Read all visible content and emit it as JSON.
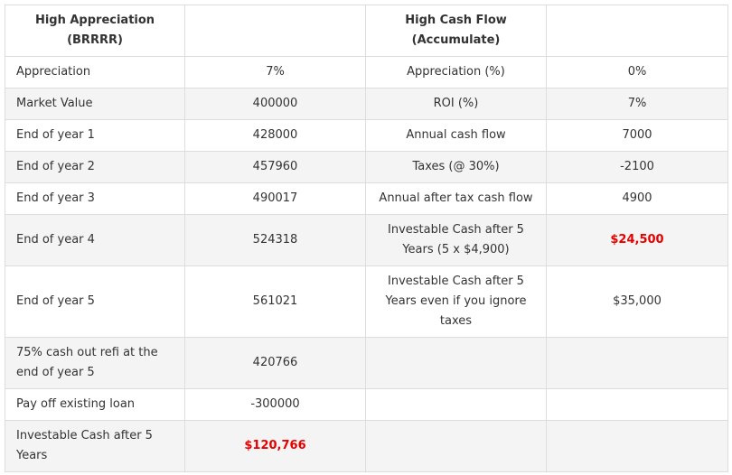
{
  "table": {
    "headers": [
      "High Appreciation (BRRRR)",
      "",
      "High Cash Flow (Accumulate)",
      ""
    ],
    "rows": [
      [
        "Appreciation",
        "7%",
        "Appreciation (%)",
        "0%"
      ],
      [
        "Market Value",
        "400000",
        "ROI (%)",
        "7%"
      ],
      [
        "End of year 1",
        "428000",
        "Annual cash flow",
        "7000"
      ],
      [
        "End of year 2",
        "457960",
        "Taxes (@ 30%)",
        "-2100"
      ],
      [
        "End of year 3",
        "490017",
        "Annual after tax cash flow",
        "4900"
      ],
      [
        "End of year 4",
        "524318",
        "Investable Cash after 5 Years (5 x $4,900)",
        "$24,500"
      ],
      [
        "End of year 5",
        "561021",
        "Investable Cash after 5 Years even if you ignore taxes",
        "$35,000"
      ],
      [
        "75% cash out refi at the end of year 5",
        "420766",
        "",
        ""
      ],
      [
        "Pay off existing loan",
        "-300000",
        "",
        ""
      ],
      [
        "Investable Cash after 5 Years",
        "$120,766",
        "",
        ""
      ]
    ]
  },
  "colors": {
    "highlight": "#e60000",
    "stripe": "#f4f4f4",
    "border": "#dddddd",
    "text": "#333333"
  }
}
